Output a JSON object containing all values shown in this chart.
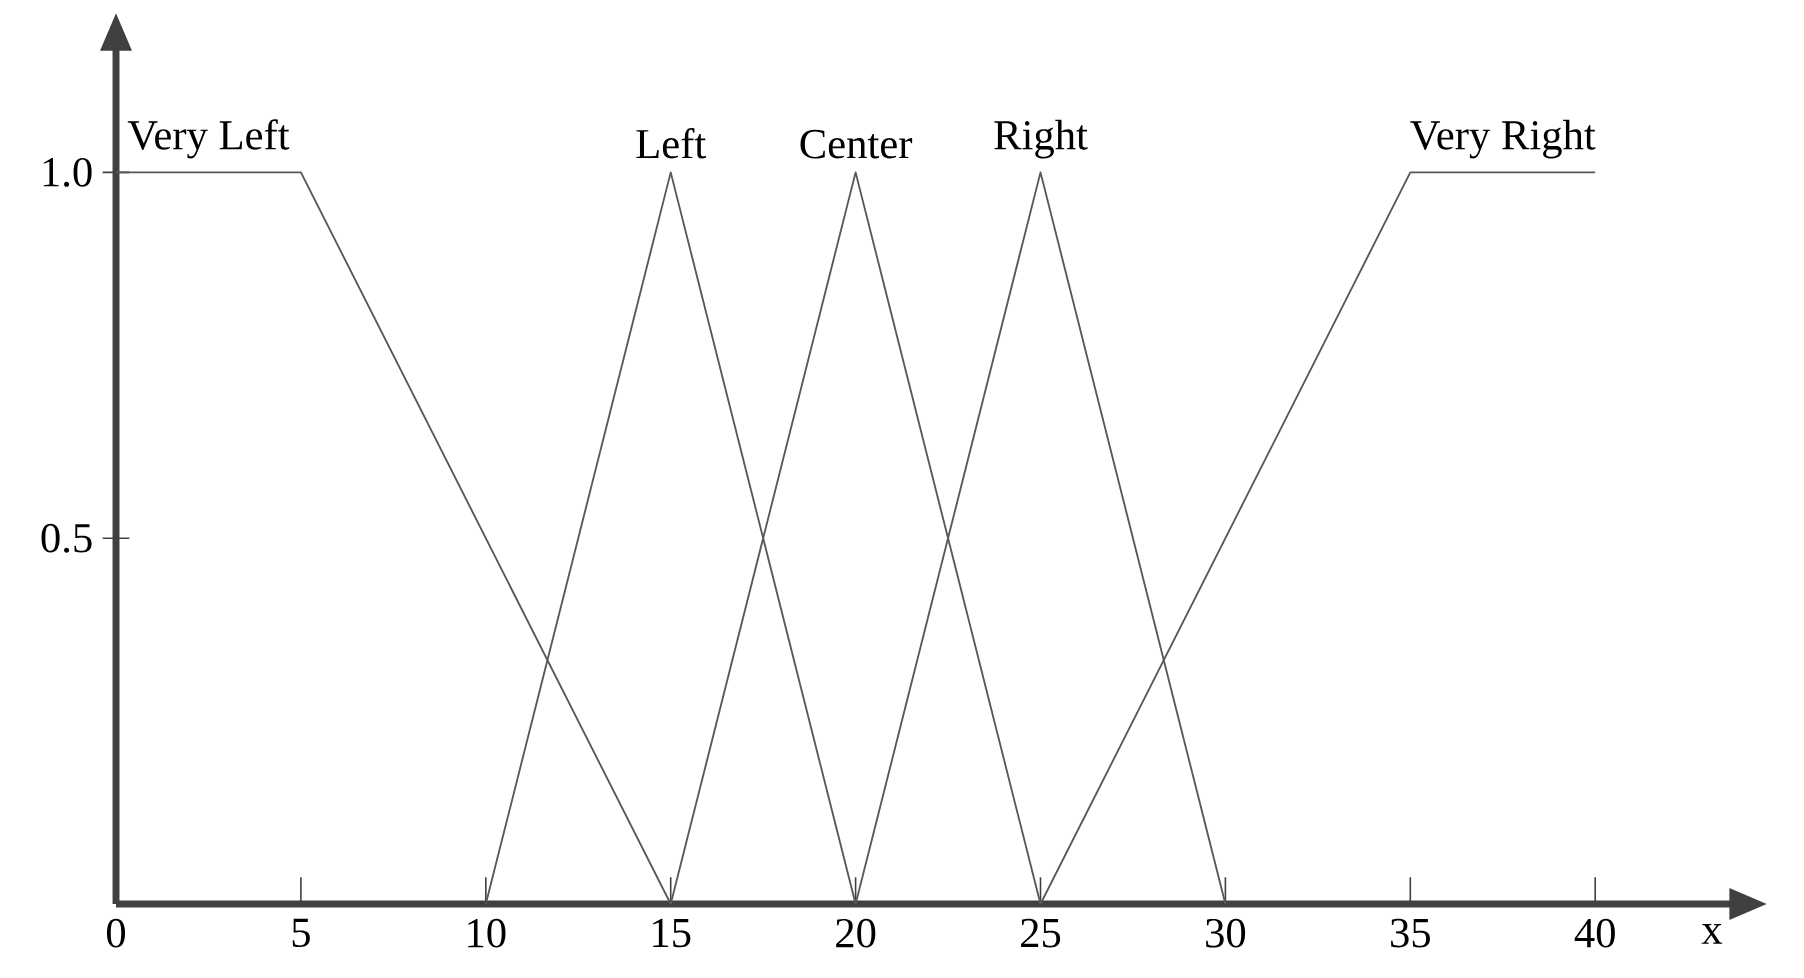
{
  "chart_data": {
    "type": "line",
    "xlabel": "x",
    "xlim": [
      0,
      43.7
    ],
    "ylim": [
      0,
      1.17
    ],
    "xticks": [
      {
        "value": 0,
        "label": "0"
      },
      5,
      10,
      15,
      20,
      25,
      30,
      35,
      40
    ],
    "yticks": [
      {
        "value": 0.5,
        "label": "0.5"
      },
      {
        "value": 1,
        "label": "1.0"
      }
    ],
    "grid": false,
    "legend": false,
    "marker": "none",
    "line_style": "solid",
    "series": [
      {
        "name": "Very Left",
        "color": "#595959",
        "x": [
          0,
          5,
          15
        ],
        "values": [
          1,
          1,
          0
        ]
      },
      {
        "name": "Left",
        "color": "#595959",
        "x": [
          10,
          15,
          20
        ],
        "values": [
          0,
          1,
          0
        ]
      },
      {
        "name": "Center",
        "color": "#595959",
        "x": [
          15,
          20,
          25
        ],
        "values": [
          0,
          1,
          0
        ]
      },
      {
        "name": "Right",
        "color": "#595959",
        "x": [
          20,
          25,
          30
        ],
        "values": [
          0,
          1,
          0
        ]
      },
      {
        "name": "Very Right",
        "color": "#595959",
        "x": [
          25,
          35,
          40
        ],
        "values": [
          0,
          1,
          1
        ]
      }
    ]
  }
}
